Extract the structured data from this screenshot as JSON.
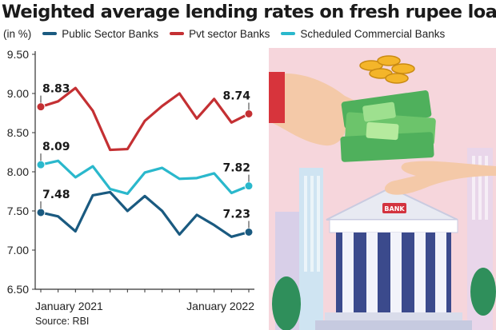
{
  "title": "Weighted average lending rates on fresh rupee loans",
  "unit_label": "(in %)",
  "source": "Source: RBI",
  "colors": {
    "public": "#1a5a80",
    "pvt": "#c43033",
    "scb": "#2ab8cc",
    "axis": "#333333"
  },
  "chart_data": {
    "type": "line",
    "ylim": [
      6.5,
      9.5
    ],
    "yticks": [
      "9.50",
      "9.00",
      "8.50",
      "8.00",
      "7.50",
      "7.00",
      "6.50"
    ],
    "x": [
      "Jan 2021",
      "Feb 2021",
      "Mar 2021",
      "Apr 2021",
      "May 2021",
      "Jun 2021",
      "Jul 2021",
      "Aug 2021",
      "Sep 2021",
      "Oct 2021",
      "Nov 2021",
      "Dec 2021",
      "Jan 2022"
    ],
    "xtick_labels": [
      {
        "index": 0,
        "label": "January 2021"
      },
      {
        "index": 12,
        "label": "January 2022"
      }
    ],
    "legend_placement": "top",
    "series": [
      {
        "name": "Public Sector Banks",
        "color_key": "public",
        "values": [
          7.48,
          7.43,
          7.24,
          7.7,
          7.74,
          7.5,
          7.69,
          7.5,
          7.2,
          7.45,
          7.32,
          7.17,
          7.23
        ],
        "start_label": "7.48",
        "end_label": "7.23"
      },
      {
        "name": "Pvt sector Banks",
        "color_key": "pvt",
        "values": [
          8.83,
          8.9,
          9.07,
          8.78,
          8.28,
          8.29,
          8.65,
          8.84,
          9.0,
          8.68,
          8.93,
          8.63,
          8.74
        ],
        "start_label": "8.83",
        "end_label": "8.74"
      },
      {
        "name": "Scheduled Commercial Banks",
        "color_key": "scb",
        "values": [
          8.09,
          8.14,
          7.93,
          8.07,
          7.78,
          7.72,
          7.99,
          8.05,
          7.91,
          7.92,
          7.98,
          7.73,
          7.82
        ],
        "start_label": "8.09",
        "end_label": "7.82"
      }
    ]
  }
}
